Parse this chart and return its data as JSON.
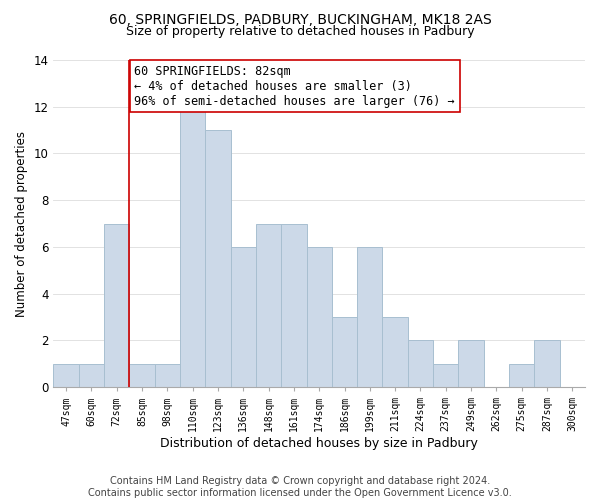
{
  "title": "60, SPRINGFIELDS, PADBURY, BUCKINGHAM, MK18 2AS",
  "subtitle": "Size of property relative to detached houses in Padbury",
  "xlabel": "Distribution of detached houses by size in Padbury",
  "ylabel": "Number of detached properties",
  "bar_color": "#ccd9e8",
  "bar_edge_color": "#a8bfd0",
  "background_color": "#ffffff",
  "grid_color": "#dddddd",
  "bin_labels": [
    "47sqm",
    "60sqm",
    "72sqm",
    "85sqm",
    "98sqm",
    "110sqm",
    "123sqm",
    "136sqm",
    "148sqm",
    "161sqm",
    "174sqm",
    "186sqm",
    "199sqm",
    "211sqm",
    "224sqm",
    "237sqm",
    "249sqm",
    "262sqm",
    "275sqm",
    "287sqm",
    "300sqm"
  ],
  "bin_values": [
    1,
    1,
    7,
    1,
    1,
    12,
    11,
    6,
    7,
    7,
    6,
    3,
    6,
    3,
    2,
    1,
    2,
    0,
    1,
    2,
    0
  ],
  "vline_x_index": 3,
  "vline_color": "#cc0000",
  "annotation_text": "60 SPRINGFIELDS: 82sqm\n← 4% of detached houses are smaller (3)\n96% of semi-detached houses are larger (76) →",
  "annotation_box_color": "#ffffff",
  "annotation_box_edge_color": "#cc0000",
  "ylim": [
    0,
    14
  ],
  "yticks": [
    0,
    2,
    4,
    6,
    8,
    10,
    12,
    14
  ],
  "footer_text": "Contains HM Land Registry data © Crown copyright and database right 2024.\nContains public sector information licensed under the Open Government Licence v3.0.",
  "title_fontsize": 10,
  "subtitle_fontsize": 9,
  "annotation_fontsize": 8.5,
  "footer_fontsize": 7,
  "ylabel_fontsize": 8.5,
  "xlabel_fontsize": 9
}
